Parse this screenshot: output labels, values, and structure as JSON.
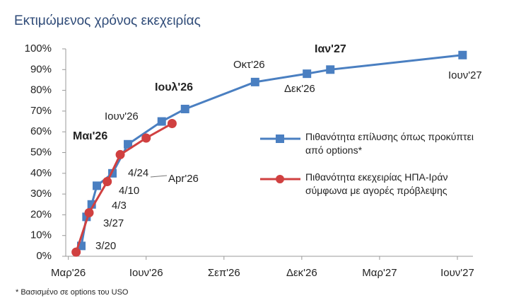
{
  "chart_data": {
    "type": "line",
    "title": "Εκτιμώμενος χρόνος εκεχειρίας",
    "footnote": "* Βασισμένο σε options του USO",
    "series": [
      {
        "name": "Πιθανότητα επίλυσης όπως προκύπτει από options*",
        "color": "#4a7fc1",
        "marker": "square",
        "x": [
          0.5,
          0.7,
          0.9,
          1.1,
          1.7,
          2.3,
          3.6,
          4.5,
          7.2,
          9.2,
          10.1,
          15.2
        ],
        "values": [
          5,
          19,
          25,
          34,
          40,
          54,
          65,
          71,
          84,
          88,
          90,
          97
        ]
      },
      {
        "name": "Πιθανότητα εκεχειρίας ΗΠΑ-Ιράν σύμφωνα με αγορές πρόβλεψης",
        "color": "#d04040",
        "marker": "circle",
        "x": [
          0.3,
          0.8,
          1.5,
          2.0,
          3.0,
          4.0
        ],
        "values": [
          2,
          21,
          36,
          49,
          57,
          64
        ]
      }
    ],
    "xlim": [
      -0.1,
      15.6
    ],
    "xticks": [
      {
        "value": 0,
        "label": "Μαρ'26"
      },
      {
        "value": 3,
        "label": "Ιουν'26"
      },
      {
        "value": 6,
        "label": "Σεπ'26"
      },
      {
        "value": 9,
        "label": "Δεκ'26"
      },
      {
        "value": 12,
        "label": "Μαρ'27"
      },
      {
        "value": 15,
        "label": "Ιουν'27"
      }
    ],
    "ylim": [
      0,
      100
    ],
    "yticks": [
      {
        "value": 0,
        "label": "0%"
      },
      {
        "value": 10,
        "label": "10%"
      },
      {
        "value": 20,
        "label": "20%"
      },
      {
        "value": 30,
        "label": "30%"
      },
      {
        "value": 40,
        "label": "40%"
      },
      {
        "value": 50,
        "label": "50%"
      },
      {
        "value": 60,
        "label": "60%"
      },
      {
        "value": 70,
        "label": "70%"
      },
      {
        "value": 80,
        "label": "80%"
      },
      {
        "value": 90,
        "label": "90%"
      },
      {
        "value": 100,
        "label": "100%"
      }
    ],
    "grid": false,
    "annotations": [
      "Ιαν'27",
      "Οκτ'26",
      "Δεκ'26",
      "Ιουν'27",
      "Ιουλ'26",
      "Ιουν'26",
      "Μαι'26",
      "4/24",
      "Apr'26",
      "4/10",
      "4/3",
      "3/27",
      "3/20"
    ]
  }
}
